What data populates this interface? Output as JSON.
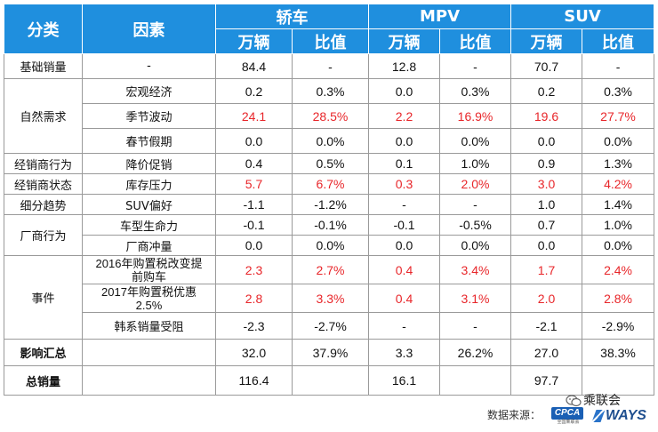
{
  "header": {
    "col_category": "分类",
    "col_factor": "因素",
    "groups": [
      "轿车",
      "MPV",
      "SUV"
    ],
    "sub_units": "万辆",
    "sub_ratio": "比值"
  },
  "rows": [
    {
      "cat": "基础销量",
      "factor": "",
      "c": [
        "84.4",
        "-",
        "12.8",
        "-",
        "70.7",
        "-"
      ],
      "factor_text": "-"
    },
    {
      "cat": "自然需求",
      "factor": "宏观经济",
      "c": [
        "0.2",
        "0.3%",
        "0.0",
        "0.3%",
        "0.2",
        "0.3%"
      ]
    },
    {
      "cat": "",
      "factor": "季节波动",
      "c": [
        "24.1",
        "28.5%",
        "2.2",
        "16.9%",
        "19.6",
        "27.7%"
      ]
    },
    {
      "cat": "",
      "factor": "春节假期",
      "c": [
        "0.0",
        "0.0%",
        "0.0",
        "0.0%",
        "0.0",
        "0.0%"
      ]
    },
    {
      "cat": "经销商行为",
      "factor": "降价促销",
      "c": [
        "0.4",
        "0.5%",
        "0.1",
        "1.0%",
        "0.9",
        "1.3%"
      ]
    },
    {
      "cat": "经销商状态",
      "factor": "库存压力",
      "c": [
        "5.7",
        "6.7%",
        "0.3",
        "2.0%",
        "3.0",
        "4.2%"
      ]
    },
    {
      "cat": "细分趋势",
      "factor": "SUV偏好",
      "c": [
        "-1.1",
        "-1.2%",
        "-",
        "-",
        "1.0",
        "1.4%"
      ]
    },
    {
      "cat": "厂商行为",
      "factor": "车型生命力",
      "c": [
        "-0.1",
        "-0.1%",
        "-0.1",
        "-0.5%",
        "0.7",
        "1.0%"
      ]
    },
    {
      "cat": "",
      "factor": "厂商冲量",
      "c": [
        "0.0",
        "0.0%",
        "0.0",
        "0.0%",
        "0.0",
        "0.0%"
      ]
    },
    {
      "cat": "事件",
      "factor": "2016年购置税改变提前购车",
      "c": [
        "2.3",
        "2.7%",
        "0.4",
        "3.4%",
        "1.7",
        "2.4%"
      ]
    },
    {
      "cat": "",
      "factor": "2017年购置税优惠2.5%",
      "c": [
        "2.8",
        "3.3%",
        "0.4",
        "3.1%",
        "2.0",
        "2.8%"
      ]
    },
    {
      "cat": "",
      "factor": "韩系销量受阻",
      "c": [
        "-2.3",
        "-2.7%",
        "-",
        "-",
        "-2.1",
        "-2.9%"
      ]
    },
    {
      "cat": "影响汇总",
      "factor": "",
      "c": [
        "32.0",
        "37.9%",
        "3.3",
        "26.2%",
        "27.0",
        "38.3%"
      ]
    },
    {
      "cat": "总销量",
      "factor": "",
      "c": [
        "116.4",
        "",
        "16.1",
        "",
        "97.7",
        ""
      ]
    }
  ],
  "factor_lines": {
    "r9a": "2016年购置税改变提",
    "r9b": "前购车",
    "r10a": "2017年购置税优惠",
    "r10b": "2.5%"
  },
  "colors": {
    "header_bg": "#1f8fde",
    "highlight": "#e8262a"
  },
  "footer": {
    "source_label": "数据来源：",
    "cpca_logo": "CPCA",
    "cpca_sub": "全国乘联会",
    "ways_logo": "WAYS",
    "watermark": "乘联会"
  }
}
